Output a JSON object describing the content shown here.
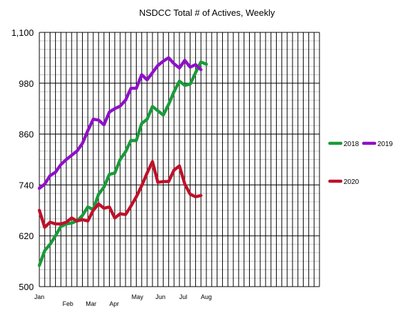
{
  "chart_data": {
    "type": "line",
    "title": "NSDCC Total # of Actives, Weekly",
    "xlabel": "",
    "ylabel": "",
    "ylim": [
      500,
      1100
    ],
    "y_ticks": [
      500,
      620,
      740,
      860,
      980,
      1100
    ],
    "y_tick_labels": [
      "500",
      "620",
      "740",
      "860",
      "980",
      "1,100"
    ],
    "x_range": [
      1,
      53
    ],
    "month_ticks": [
      {
        "label": "Jan",
        "week": 1
      },
      {
        "label": "Feb",
        "week": 6.3
      },
      {
        "label": "Mar",
        "week": 10.6
      },
      {
        "label": "Apr",
        "week": 14.9
      },
      {
        "label": "May",
        "week": 19.2
      },
      {
        "label": "Jun",
        "week": 23.5
      },
      {
        "label": "Jul",
        "week": 27.7
      },
      {
        "label": "Aug",
        "week": 32
      }
    ],
    "grid": true,
    "legend_position": "right",
    "series": [
      {
        "name": "2018",
        "color": "#1a9a3a",
        "values": [
          550,
          585,
          600,
          620,
          642,
          648,
          650,
          655,
          668,
          688,
          682,
          718,
          735,
          765,
          768,
          800,
          818,
          845,
          845,
          885,
          895,
          925,
          915,
          905,
          930,
          960,
          985,
          975,
          978,
          1005,
          1030,
          1025
        ]
      },
      {
        "name": "2019",
        "color": "#8f10c8",
        "values": [
          732,
          742,
          762,
          770,
          788,
          800,
          810,
          820,
          838,
          868,
          895,
          893,
          882,
          912,
          920,
          926,
          940,
          968,
          968,
          1000,
          988,
          1005,
          1022,
          1032,
          1040,
          1026,
          1016,
          1034,
          1018,
          1024,
          1012
        ]
      },
      {
        "name": "2020",
        "color": "#c0102a",
        "values": [
          680,
          640,
          652,
          648,
          648,
          652,
          662,
          655,
          658,
          655,
          680,
          695,
          685,
          688,
          662,
          672,
          670,
          690,
          712,
          738,
          768,
          795,
          746,
          748,
          748,
          775,
          785,
          742,
          718,
          712,
          715
        ]
      }
    ]
  }
}
